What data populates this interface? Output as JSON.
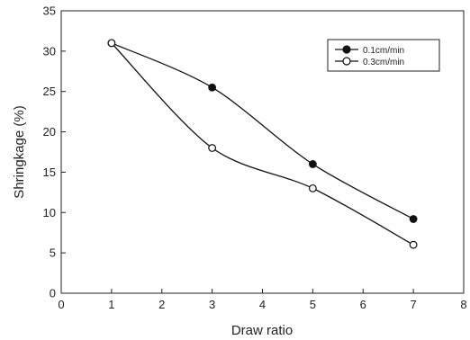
{
  "chart_data": {
    "type": "line",
    "title": "",
    "xlabel": "Draw ratio",
    "ylabel": "Shringkage (%)",
    "xlim": [
      0,
      8
    ],
    "ylim": [
      0,
      35
    ],
    "x_ticks": [
      0,
      1,
      2,
      3,
      4,
      5,
      6,
      7,
      8
    ],
    "y_ticks": [
      0,
      5,
      10,
      15,
      20,
      25,
      30,
      35
    ],
    "grid": false,
    "legend_position": "top-right",
    "series": [
      {
        "name": "0.1cm/min",
        "marker": "filled-circle",
        "color": "#111111",
        "x": [
          1,
          3,
          5,
          7
        ],
        "y": [
          31,
          25.5,
          16,
          9.2
        ]
      },
      {
        "name": "0.3cm/min",
        "marker": "open-circle",
        "color": "#111111",
        "x": [
          1,
          3,
          5,
          7
        ],
        "y": [
          31,
          18,
          13,
          6
        ]
      }
    ]
  }
}
